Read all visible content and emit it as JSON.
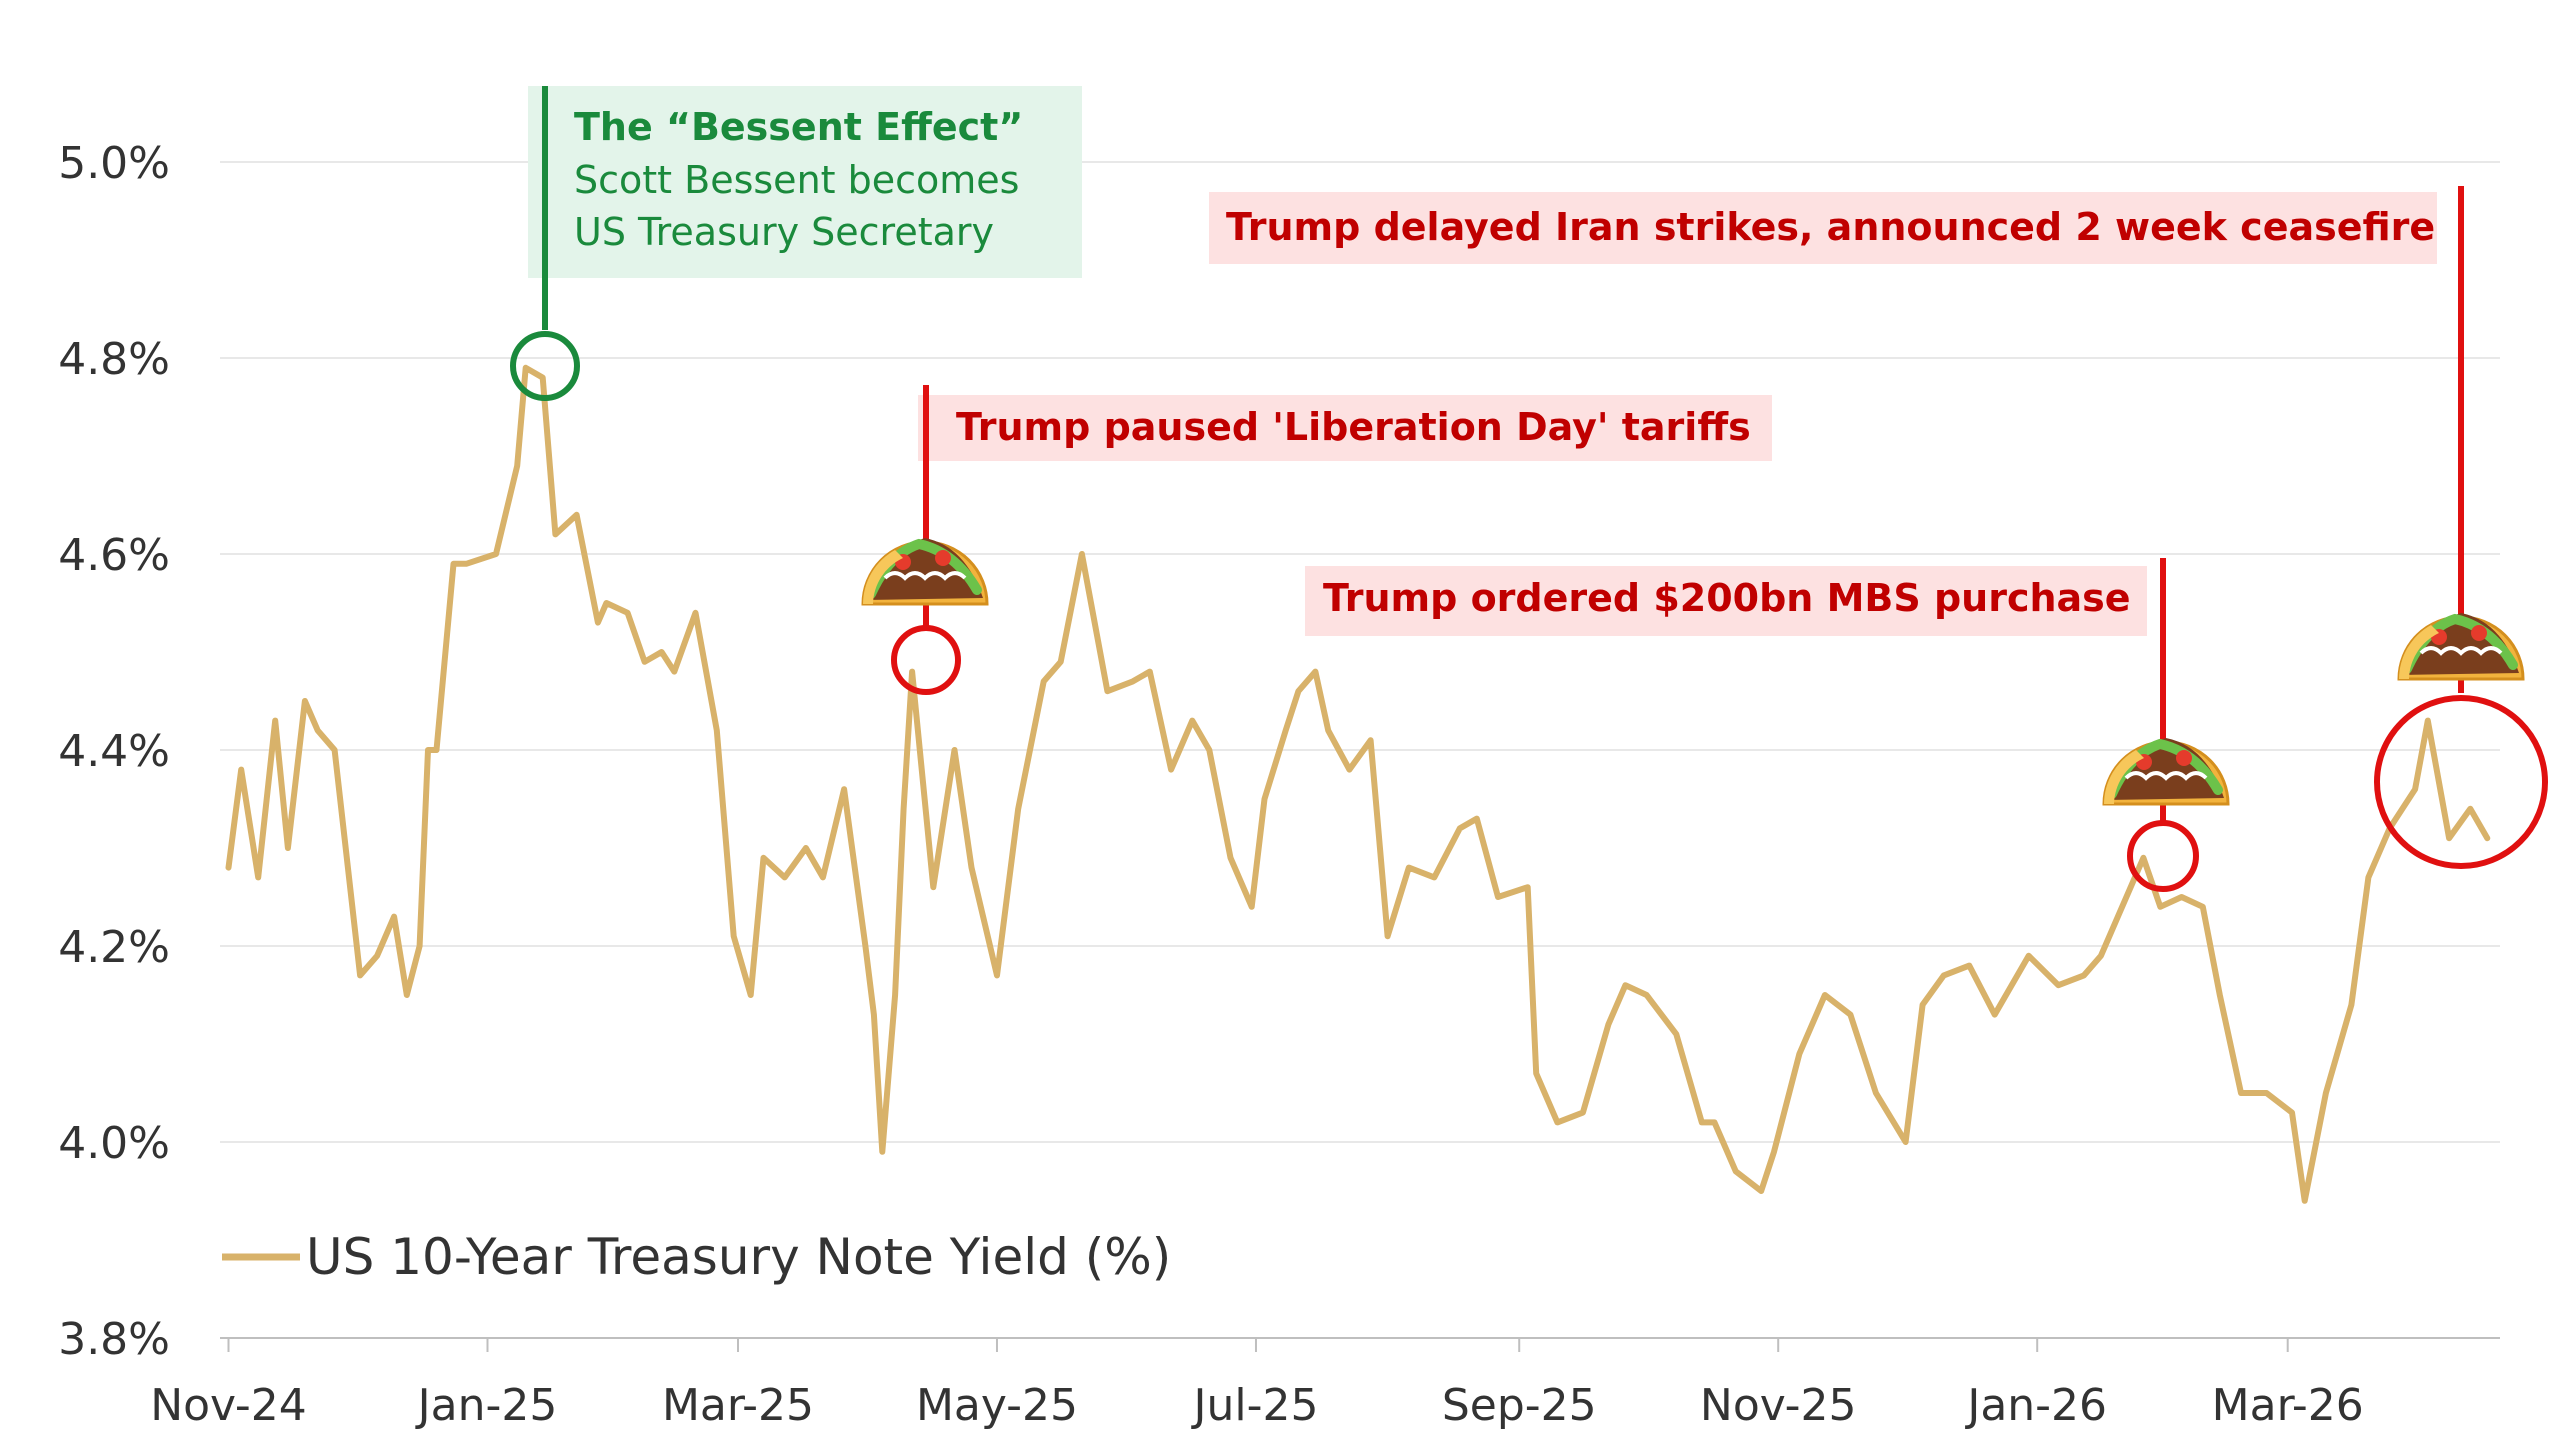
{
  "chart_data": {
    "type": "line",
    "title": "",
    "xlabel": "",
    "ylabel": "",
    "ylim": [
      3.8,
      5.0
    ],
    "y_ticks": [
      3.8,
      4.0,
      4.2,
      4.4,
      4.6,
      4.8,
      5.0
    ],
    "y_tick_labels": [
      "3.8%",
      "4.0%",
      "4.2%",
      "4.4%",
      "4.6%",
      "4.8%",
      "5.0%"
    ],
    "x_tick_labels": [
      "Nov-24",
      "Jan-25",
      "Mar-25",
      "May-25",
      "Jul-25",
      "Sep-25",
      "Nov-25",
      "Jan-26",
      "Mar-26"
    ],
    "grid": true,
    "legend": {
      "label": "US 10-Year Treasury Note Yield (%)",
      "position": "bottom-left"
    },
    "series": [
      {
        "name": "US 10-Year Treasury Note Yield (%)",
        "color": "#d8b26a",
        "x": [
          "2024-11-01",
          "2024-11-04",
          "2024-11-08",
          "2024-11-12",
          "2024-11-15",
          "2024-11-19",
          "2024-11-22",
          "2024-11-26",
          "2024-12-02",
          "2024-12-06",
          "2024-12-10",
          "2024-12-13",
          "2024-12-16",
          "2024-12-18",
          "2024-12-20",
          "2024-12-24",
          "2024-12-27",
          "2025-01-03",
          "2025-01-08",
          "2025-01-10",
          "2025-01-14",
          "2025-01-17",
          "2025-01-22",
          "2025-01-27",
          "2025-01-29",
          "2025-02-03",
          "2025-02-07",
          "2025-02-11",
          "2025-02-14",
          "2025-02-19",
          "2025-02-24",
          "2025-02-28",
          "2025-03-04",
          "2025-03-07",
          "2025-03-12",
          "2025-03-17",
          "2025-03-21",
          "2025-03-26",
          "2025-03-31",
          "2025-04-02",
          "2025-04-04",
          "2025-04-07",
          "2025-04-09",
          "2025-04-11",
          "2025-04-16",
          "2025-04-21",
          "2025-04-25",
          "2025-05-01",
          "2025-05-06",
          "2025-05-12",
          "2025-05-16",
          "2025-05-21",
          "2025-05-27",
          "2025-06-02",
          "2025-06-06",
          "2025-06-11",
          "2025-06-16",
          "2025-06-20",
          "2025-06-25",
          "2025-06-30",
          "2025-07-03",
          "2025-07-08",
          "2025-07-11",
          "2025-07-15",
          "2025-07-18",
          "2025-07-23",
          "2025-07-28",
          "2025-08-01",
          "2025-08-06",
          "2025-08-12",
          "2025-08-18",
          "2025-08-22",
          "2025-08-27",
          "2025-09-03",
          "2025-09-05",
          "2025-09-10",
          "2025-09-16",
          "2025-09-22",
          "2025-09-26",
          "2025-10-01",
          "2025-10-08",
          "2025-10-14",
          "2025-10-17",
          "2025-10-22",
          "2025-10-28",
          "2025-10-31",
          "2025-11-06",
          "2025-11-12",
          "2025-11-18",
          "2025-11-24",
          "2025-12-01",
          "2025-12-05",
          "2025-12-10",
          "2025-12-16",
          "2025-12-22",
          "2025-12-30",
          "2026-01-06",
          "2026-01-12",
          "2026-01-16",
          "2026-01-20",
          "2026-01-26",
          "2026-01-30",
          "2026-02-04",
          "2026-02-09",
          "2026-02-13",
          "2026-02-18",
          "2026-02-24",
          "2026-03-02",
          "2026-03-05",
          "2026-03-10",
          "2026-03-16",
          "2026-03-20",
          "2026-03-25",
          "2026-03-31",
          "2026-04-03",
          "2026-04-08",
          "2026-04-13",
          "2026-04-17"
        ],
        "values": [
          4.28,
          4.38,
          4.27,
          4.43,
          4.3,
          4.45,
          4.42,
          4.4,
          4.17,
          4.19,
          4.23,
          4.15,
          4.2,
          4.4,
          4.4,
          4.59,
          4.59,
          4.6,
          4.69,
          4.79,
          4.78,
          4.62,
          4.64,
          4.53,
          4.55,
          4.54,
          4.49,
          4.5,
          4.48,
          4.54,
          4.42,
          4.21,
          4.15,
          4.29,
          4.27,
          4.3,
          4.27,
          4.36,
          4.2,
          4.13,
          3.99,
          4.15,
          4.34,
          4.48,
          4.26,
          4.4,
          4.28,
          4.17,
          4.34,
          4.47,
          4.49,
          4.6,
          4.46,
          4.47,
          4.48,
          4.38,
          4.43,
          4.4,
          4.29,
          4.24,
          4.35,
          4.42,
          4.46,
          4.48,
          4.42,
          4.38,
          4.41,
          4.21,
          4.28,
          4.27,
          4.32,
          4.33,
          4.25,
          4.26,
          4.07,
          4.02,
          4.03,
          4.12,
          4.16,
          4.15,
          4.11,
          4.02,
          4.02,
          3.97,
          3.95,
          3.99,
          4.09,
          4.15,
          4.13,
          4.05,
          4.0,
          4.14,
          4.17,
          4.18,
          4.13,
          4.19,
          4.16,
          4.17,
          4.19,
          4.23,
          4.29,
          4.24,
          4.25,
          4.24,
          4.15,
          4.05,
          4.05,
          4.03,
          3.94,
          4.05,
          4.14,
          4.27,
          4.32,
          4.36,
          4.43,
          4.31,
          4.34,
          4.31
        ]
      }
    ],
    "annotations": [
      {
        "title": "The “Bessent Effect”",
        "lines": [
          "Scott Bessent becomes",
          "US Treasury Secretary"
        ],
        "date": "2025-01-10",
        "value": 4.79,
        "color": "#1a8a3c",
        "kind": "circle"
      },
      {
        "title": "Trump paused 'Liberation Day' tariffs",
        "date": "2025-04-11",
        "value": 4.48,
        "color": "#e01010",
        "kind": "taco"
      },
      {
        "title": "Trump ordered $200bn MBS purchase",
        "date": "2026-01-26",
        "value": 4.29,
        "color": "#e01010",
        "kind": "taco"
      },
      {
        "title": "Trump delayed Iran strikes, announced 2 week ceasefire",
        "date": "2026-04-08",
        "value": 4.36,
        "color": "#e01010",
        "kind": "taco"
      }
    ]
  },
  "colors": {
    "line": "#d8b26a",
    "grid": "#e8e8e8",
    "axis": "#bfbfbf",
    "green": "#1a8a3c",
    "green_bg": "#e3f4ea",
    "red": "#e01010",
    "red_text": "#c00000",
    "red_bg": "#fde1e1"
  },
  "icons": {
    "taco": "taco-icon"
  }
}
